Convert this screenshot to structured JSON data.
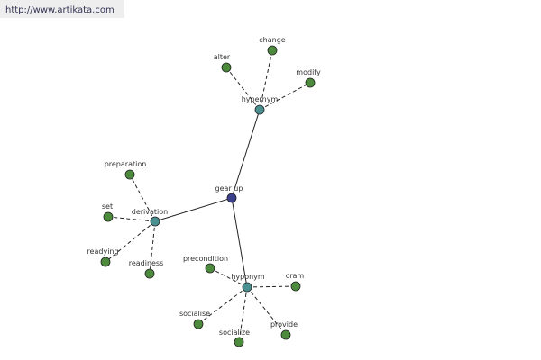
{
  "header": {
    "url": "http://www.artikata.com"
  },
  "nodes": [
    {
      "label": "gear up"
    },
    {
      "label": "hypernym"
    },
    {
      "label": "derivation"
    },
    {
      "label": "hyponym"
    },
    {
      "label": "alter"
    },
    {
      "label": "change"
    },
    {
      "label": "modify"
    },
    {
      "label": "preparation"
    },
    {
      "label": "set"
    },
    {
      "label": "readying"
    },
    {
      "label": "readiness"
    },
    {
      "label": "precondition"
    },
    {
      "label": "cram"
    },
    {
      "label": "socialise"
    },
    {
      "label": "socialize"
    },
    {
      "label": "provide"
    }
  ]
}
